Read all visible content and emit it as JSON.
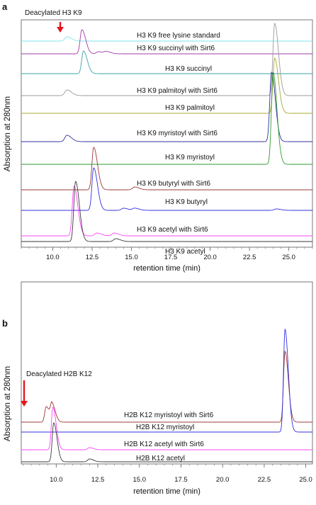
{
  "chart_data": [
    {
      "type": "line",
      "panel_label": "a",
      "ylabel": "Absorption at 280nm",
      "xlabel": "retention time (min)",
      "xlim": [
        8.0,
        26.5
      ],
      "x_ticks": [
        10.0,
        12.5,
        15.0,
        17.5,
        20.0,
        22.5,
        25.0
      ],
      "x_tick_labels": [
        "10.0",
        "12.5",
        "15.0",
        "17.5",
        "20.0",
        "22.5",
        "25.0"
      ],
      "grid": false,
      "annotation": {
        "text": "Deacylated H3 K9",
        "x": 10.9
      },
      "series": [
        {
          "name": "H3 K9 free lysine standard",
          "color": "#7fe6ee",
          "peaks": [
            {
              "x": 10.9,
              "h": 6
            }
          ]
        },
        {
          "name": "H3 K9 succinyl with Sirt6",
          "color": "#a03aa8",
          "peaks": [
            {
              "x": 11.85,
              "h": 34
            },
            {
              "x": 12.9,
              "h": 3
            },
            {
              "x": 13.4,
              "h": 3
            }
          ]
        },
        {
          "name": "H3 K9 succinyl",
          "color": "#3aa3a8",
          "peaks": [
            {
              "x": 11.95,
              "h": 32
            }
          ]
        },
        {
          "name": "H3 K9 palmitoyl with Sirt6",
          "color": "#9a9a9a",
          "peaks": [
            {
              "x": 10.9,
              "h": 8
            },
            {
              "x": 24.1,
              "h": 102
            }
          ]
        },
        {
          "name": "H3 K9 palmitoyl",
          "color": "#a8a830",
          "peaks": [
            {
              "x": 24.1,
              "h": 78
            }
          ]
        },
        {
          "name": "H3 K9 myristoyl with Sirt6",
          "color": "#3030a0",
          "peaks": [
            {
              "x": 10.9,
              "h": 9
            },
            {
              "x": 23.9,
              "h": 98
            }
          ]
        },
        {
          "name": "H3 K9 myristoyl",
          "color": "#2f9a2f",
          "peaks": [
            {
              "x": 24.0,
              "h": 130
            }
          ]
        },
        {
          "name": "H3 K9 butyryl with Sirt6",
          "color": "#a03838",
          "peaks": [
            {
              "x": 12.6,
              "h": 60
            },
            {
              "x": 15.2,
              "h": 4
            }
          ]
        },
        {
          "name": "H3 K9 butyryl",
          "color": "#3030e0",
          "peaks": [
            {
              "x": 12.6,
              "h": 60
            },
            {
              "x": 14.5,
              "h": 3
            },
            {
              "x": 15.2,
              "h": 3
            },
            {
              "x": 24.2,
              "h": 2
            }
          ]
        },
        {
          "name": "H3 K9 acetyl with Sirt6",
          "color": "#ff44ff",
          "peaks": [
            {
              "x": 11.35,
              "h": 70
            },
            {
              "x": 12.8,
              "h": 4
            },
            {
              "x": 13.9,
              "h": 4
            }
          ]
        },
        {
          "name": "H3 K9 acetyl",
          "color": "#3a3a3a",
          "peaks": [
            {
              "x": 11.45,
              "h": 85
            },
            {
              "x": 14.0,
              "h": 4
            }
          ]
        }
      ]
    },
    {
      "type": "line",
      "panel_label": "b",
      "ylabel": "Absorption at 280nm",
      "xlabel": "retention time (min)",
      "xlim": [
        7.9,
        25.4
      ],
      "x_ticks": [
        10.0,
        12.5,
        15.0,
        17.5,
        20.0,
        22.5,
        25.0
      ],
      "x_tick_labels": [
        "10.0",
        "12.5",
        "15.0",
        "17.5",
        "20.0",
        "22.5",
        "25.0"
      ],
      "grid": false,
      "annotation": {
        "text": "Deacylated H2B K12",
        "x": 9.4
      },
      "series": [
        {
          "name": "H2B K12 myristoyl with Sirt6",
          "color": "#a03838",
          "peaks": [
            {
              "x": 9.4,
              "h": 22
            },
            {
              "x": 9.75,
              "h": 24
            },
            {
              "x": 23.75,
              "h": 100
            }
          ]
        },
        {
          "name": "H2B K12 myristoyl",
          "color": "#3030e0",
          "peaks": [
            {
              "x": 23.75,
              "h": 145
            }
          ]
        },
        {
          "name": "H2B K12 acetyl with Sirt6",
          "color": "#ff44ff",
          "peaks": [
            {
              "x": 9.8,
              "h": 60
            },
            {
              "x": 12.0,
              "h": 3
            }
          ]
        },
        {
          "name": "H2B K12 acetyl",
          "color": "#3a3a3a",
          "peaks": [
            {
              "x": 9.85,
              "h": 55
            },
            {
              "x": 12.0,
              "h": 4
            }
          ]
        }
      ]
    }
  ]
}
